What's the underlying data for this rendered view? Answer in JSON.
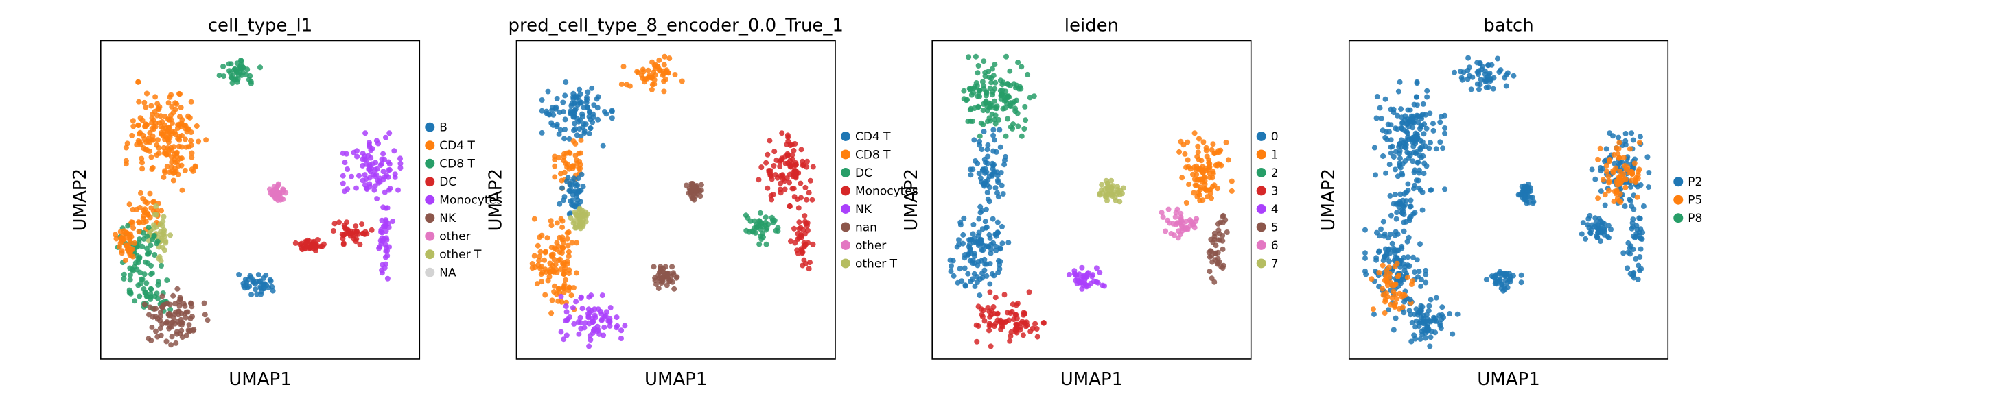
{
  "chart_data": [
    {
      "type": "scatter",
      "title": "cell_type_l1",
      "xlabel": "UMAP1",
      "ylabel": "UMAP2",
      "grid": false,
      "ticks": false,
      "legend_placement": "right",
      "legend": [
        {
          "label": "B",
          "color": "#1f77b4"
        },
        {
          "label": "CD4 T",
          "color": "#ff7f0e"
        },
        {
          "label": "CD8 T",
          "color": "#279e68"
        },
        {
          "label": "DC",
          "color": "#d62728"
        },
        {
          "label": "Monocytes",
          "color": "#aa40fc"
        },
        {
          "label": "NK",
          "color": "#8c564b"
        },
        {
          "label": "other",
          "color": "#e377c2"
        },
        {
          "label": "other T",
          "color": "#b5bd61"
        },
        {
          "label": "NA",
          "color": "#d3d3d3"
        }
      ],
      "regions": [
        {
          "x": [
            0.36,
            0.5
          ],
          "y": [
            0.05,
            0.15
          ],
          "color": "#279e68"
        },
        {
          "x": [
            0.08,
            0.33
          ],
          "y": [
            0.13,
            0.47
          ],
          "color": "#ff7f0e"
        },
        {
          "x": [
            0.09,
            0.19
          ],
          "y": [
            0.47,
            0.61
          ],
          "color": "#ff7f0e"
        },
        {
          "x": [
            0.15,
            0.22
          ],
          "y": [
            0.52,
            0.7
          ],
          "color": "#b5bd61"
        },
        {
          "x": [
            0.05,
            0.19
          ],
          "y": [
            0.57,
            0.77
          ],
          "color": "#279e68"
        },
        {
          "x": [
            0.04,
            0.12
          ],
          "y": [
            0.57,
            0.69
          ],
          "color": "#ff7f0e"
        },
        {
          "x": [
            0.09,
            0.22
          ],
          "y": [
            0.75,
            0.85
          ],
          "color": "#279e68"
        },
        {
          "x": [
            0.13,
            0.35
          ],
          "y": [
            0.78,
            0.96
          ],
          "color": "#8c564b"
        },
        {
          "x": [
            0.43,
            0.54
          ],
          "y": [
            0.73,
            0.8
          ],
          "color": "#1f77b4"
        },
        {
          "x": [
            0.53,
            0.58
          ],
          "y": [
            0.45,
            0.51
          ],
          "color": "#e377c2"
        },
        {
          "x": [
            0.76,
            0.94
          ],
          "y": [
            0.29,
            0.5
          ],
          "color": "#aa40fc"
        },
        {
          "x": [
            0.86,
            0.92
          ],
          "y": [
            0.49,
            0.75
          ],
          "color": "#aa40fc"
        },
        {
          "x": [
            0.73,
            0.85
          ],
          "y": [
            0.57,
            0.64
          ],
          "color": "#d62728"
        },
        {
          "x": [
            0.61,
            0.7
          ],
          "y": [
            0.62,
            0.66
          ],
          "color": "#d62728"
        }
      ]
    },
    {
      "type": "scatter",
      "title": "pred_cell_type_8_encoder_0.0_True_1",
      "xlabel": "UMAP1",
      "ylabel": "UMAP2",
      "grid": false,
      "ticks": false,
      "legend_placement": "right",
      "legend": [
        {
          "label": "CD4 T",
          "color": "#1f77b4"
        },
        {
          "label": "CD8 T",
          "color": "#ff7f0e"
        },
        {
          "label": "DC",
          "color": "#279e68"
        },
        {
          "label": "Monocytes",
          "color": "#d62728"
        },
        {
          "label": "NK",
          "color": "#aa40fc"
        },
        {
          "label": "nan",
          "color": "#8c564b"
        },
        {
          "label": "other",
          "color": "#e377c2"
        },
        {
          "label": "other T",
          "color": "#b5bd61"
        }
      ],
      "regions": [
        {
          "x": [
            0.33,
            0.52
          ],
          "y": [
            0.05,
            0.17
          ],
          "color": "#ff7f0e"
        },
        {
          "x": [
            0.08,
            0.3
          ],
          "y": [
            0.13,
            0.33
          ],
          "color": "#1f77b4"
        },
        {
          "x": [
            0.12,
            0.22
          ],
          "y": [
            0.3,
            0.47
          ],
          "color": "#ff7f0e"
        },
        {
          "x": [
            0.13,
            0.23
          ],
          "y": [
            0.4,
            0.55
          ],
          "color": "#1f77b4"
        },
        {
          "x": [
            0.17,
            0.23
          ],
          "y": [
            0.52,
            0.6
          ],
          "color": "#b5bd61"
        },
        {
          "x": [
            0.05,
            0.21
          ],
          "y": [
            0.56,
            0.86
          ],
          "color": "#ff7f0e"
        },
        {
          "x": [
            0.14,
            0.34
          ],
          "y": [
            0.8,
            0.96
          ],
          "color": "#aa40fc"
        },
        {
          "x": [
            0.42,
            0.52
          ],
          "y": [
            0.71,
            0.78
          ],
          "color": "#8c564b"
        },
        {
          "x": [
            0.53,
            0.58
          ],
          "y": [
            0.44,
            0.5
          ],
          "color": "#8c564b"
        },
        {
          "x": [
            0.76,
            0.94
          ],
          "y": [
            0.29,
            0.52
          ],
          "color": "#d62728"
        },
        {
          "x": [
            0.86,
            0.93
          ],
          "y": [
            0.5,
            0.75
          ],
          "color": "#d62728"
        },
        {
          "x": [
            0.72,
            0.82
          ],
          "y": [
            0.54,
            0.64
          ],
          "color": "#279e68"
        }
      ]
    },
    {
      "type": "scatter",
      "title": "leiden",
      "xlabel": "UMAP1",
      "ylabel": "UMAP2",
      "grid": false,
      "ticks": false,
      "legend_placement": "right",
      "legend": [
        {
          "label": "0",
          "color": "#1f77b4"
        },
        {
          "label": "1",
          "color": "#ff7f0e"
        },
        {
          "label": "2",
          "color": "#279e68"
        },
        {
          "label": "3",
          "color": "#d62728"
        },
        {
          "label": "4",
          "color": "#aa40fc"
        },
        {
          "label": "5",
          "color": "#8c564b"
        },
        {
          "label": "6",
          "color": "#e377c2"
        },
        {
          "label": "7",
          "color": "#b5bd61"
        }
      ],
      "regions": [
        {
          "x": [
            0.08,
            0.32
          ],
          "y": [
            0.05,
            0.3
          ],
          "color": "#279e68"
        },
        {
          "x": [
            0.12,
            0.23
          ],
          "y": [
            0.28,
            0.56
          ],
          "color": "#1f77b4"
        },
        {
          "x": [
            0.05,
            0.24
          ],
          "y": [
            0.54,
            0.8
          ],
          "color": "#1f77b4"
        },
        {
          "x": [
            0.13,
            0.35
          ],
          "y": [
            0.79,
            0.96
          ],
          "color": "#d62728"
        },
        {
          "x": [
            0.43,
            0.54
          ],
          "y": [
            0.71,
            0.79
          ],
          "color": "#aa40fc"
        },
        {
          "x": [
            0.52,
            0.6
          ],
          "y": [
            0.44,
            0.51
          ],
          "color": "#b5bd61"
        },
        {
          "x": [
            0.76,
            0.94
          ],
          "y": [
            0.29,
            0.53
          ],
          "color": "#ff7f0e"
        },
        {
          "x": [
            0.72,
            0.85
          ],
          "y": [
            0.53,
            0.62
          ],
          "color": "#e377c2"
        },
        {
          "x": [
            0.86,
            0.93
          ],
          "y": [
            0.55,
            0.76
          ],
          "color": "#8c564b"
        }
      ]
    },
    {
      "type": "scatter",
      "title": "batch",
      "xlabel": "UMAP1",
      "ylabel": "UMAP2",
      "grid": false,
      "ticks": false,
      "legend_placement": "right",
      "legend": [
        {
          "label": "P2",
          "color": "#1f77b4"
        },
        {
          "label": "P5",
          "color": "#ff7f0e"
        },
        {
          "label": "P8",
          "color": "#279e68"
        }
      ],
      "regions": [
        {
          "x": [
            0.33,
            0.52
          ],
          "y": [
            0.05,
            0.17
          ],
          "color": "#1f77b4"
        },
        {
          "x": [
            0.08,
            0.3
          ],
          "y": [
            0.13,
            0.47
          ],
          "color": "#1f77b4"
        },
        {
          "x": [
            0.12,
            0.23
          ],
          "y": [
            0.45,
            0.58
          ],
          "color": "#1f77b4"
        },
        {
          "x": [
            0.05,
            0.24
          ],
          "y": [
            0.56,
            0.86
          ],
          "color": "#1f77b4"
        },
        {
          "x": [
            0.07,
            0.2
          ],
          "y": [
            0.7,
            0.86
          ],
          "color": "#ff7f0e"
        },
        {
          "x": [
            0.14,
            0.34
          ],
          "y": [
            0.8,
            0.96
          ],
          "color": "#1f77b4"
        },
        {
          "x": [
            0.43,
            0.54
          ],
          "y": [
            0.71,
            0.79
          ],
          "color": "#1f77b4"
        },
        {
          "x": [
            0.53,
            0.58
          ],
          "y": [
            0.45,
            0.51
          ],
          "color": "#1f77b4"
        },
        {
          "x": [
            0.76,
            0.94
          ],
          "y": [
            0.29,
            0.52
          ],
          "color": "#1f77b4"
        },
        {
          "x": [
            0.78,
            0.93
          ],
          "y": [
            0.32,
            0.52
          ],
          "color": "#ff7f0e"
        },
        {
          "x": [
            0.86,
            0.93
          ],
          "y": [
            0.5,
            0.75
          ],
          "color": "#1f77b4"
        },
        {
          "x": [
            0.73,
            0.83
          ],
          "y": [
            0.55,
            0.63
          ],
          "color": "#1f77b4"
        }
      ]
    }
  ]
}
